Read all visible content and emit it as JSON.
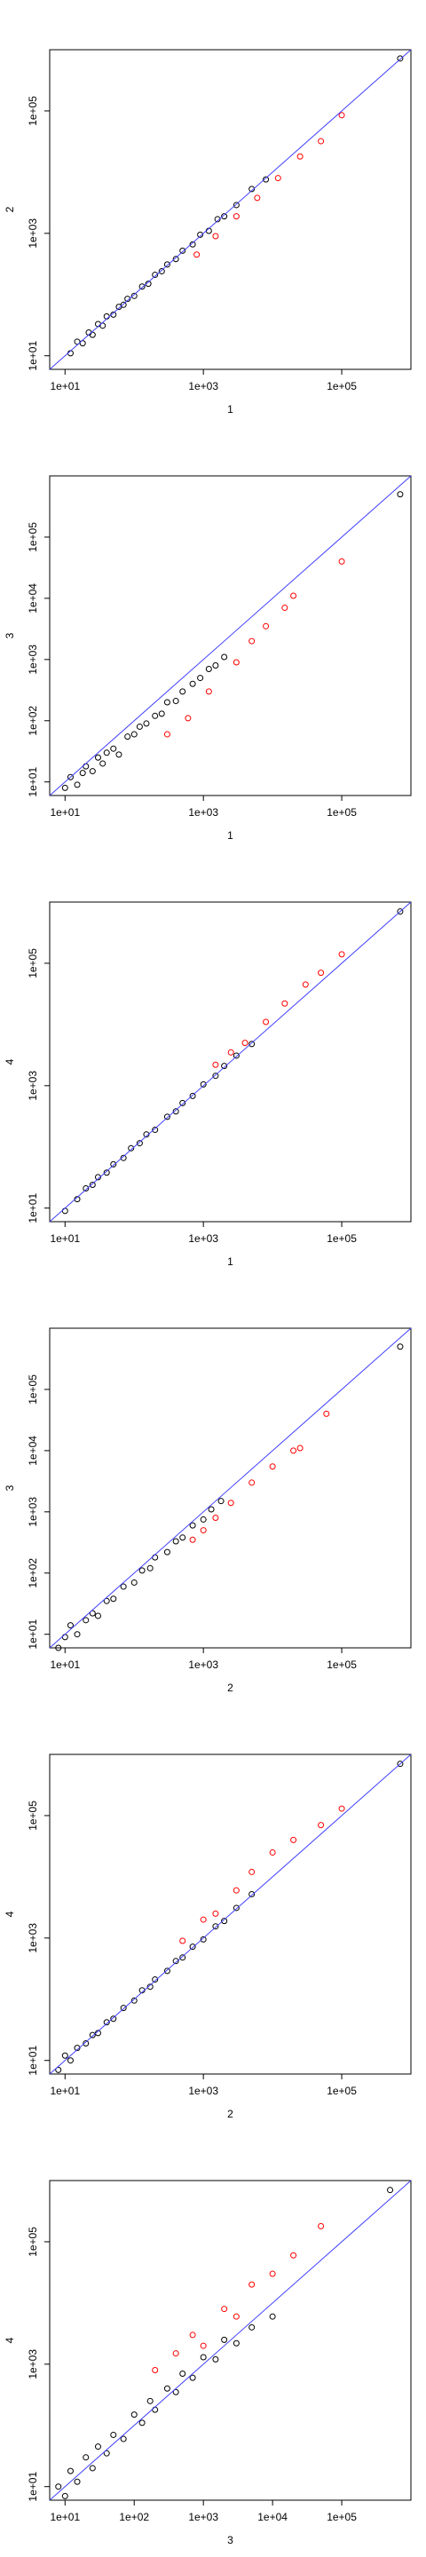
{
  "chart_data": [
    {
      "type": "scatter",
      "xlabel": "1",
      "ylabel": "2",
      "log_x": true,
      "log_y": true,
      "xlim": [
        6,
        1000000
      ],
      "ylim": [
        6,
        1000000
      ],
      "xticks": [
        {
          "value": 10,
          "label": "1e+01"
        },
        {
          "value": 1000,
          "label": "1e+03"
        },
        {
          "value": 100000,
          "label": "1e+05"
        }
      ],
      "yticks": [
        {
          "value": 10,
          "label": "1e+01"
        },
        {
          "value": 1000,
          "label": "1e+03"
        },
        {
          "value": 100000,
          "label": "1e+05"
        }
      ],
      "series": [
        {
          "color": "#000000",
          "x": [
            12,
            15,
            18,
            22,
            25,
            30,
            35,
            40,
            50,
            60,
            70,
            80,
            100,
            130,
            160,
            200,
            250,
            300,
            400,
            500,
            700,
            900,
            1200,
            1600,
            2000,
            3000,
            5000,
            8000,
            700000
          ],
          "y": [
            11,
            17,
            16,
            24,
            22,
            33,
            31,
            44,
            47,
            63,
            68,
            85,
            95,
            135,
            150,
            210,
            240,
            310,
            380,
            520,
            660,
            950,
            1100,
            1700,
            1900,
            2900,
            5300,
            7600,
            720000
          ]
        },
        {
          "color": "#ff0000",
          "x": [
            800,
            1500,
            3000,
            6000,
            12000,
            25000,
            50000,
            100000
          ],
          "y": [
            450,
            900,
            1900,
            3800,
            8000,
            18000,
            32000,
            85000
          ]
        }
      ]
    },
    {
      "type": "scatter",
      "xlabel": "1",
      "ylabel": "3",
      "log_x": true,
      "log_y": true,
      "xlim": [
        6,
        1000000
      ],
      "ylim": [
        6,
        1000000
      ],
      "xticks": [
        {
          "value": 10,
          "label": "1e+01"
        },
        {
          "value": 1000,
          "label": "1e+03"
        },
        {
          "value": 100000,
          "label": "1e+05"
        }
      ],
      "yticks": [
        {
          "value": 10,
          "label": "1e+01"
        },
        {
          "value": 100,
          "label": "1e+02"
        },
        {
          "value": 1000,
          "label": "1e+03"
        },
        {
          "value": 10000,
          "label": "1e+04"
        },
        {
          "value": 100000,
          "label": "1e+05"
        }
      ],
      "series": [
        {
          "color": "#000000",
          "x": [
            10,
            12,
            15,
            18,
            20,
            25,
            30,
            35,
            40,
            50,
            60,
            80,
            100,
            120,
            150,
            200,
            250,
            300,
            400,
            500,
            700,
            900,
            1200,
            1500,
            2000,
            700000
          ],
          "y": [
            8,
            12,
            9,
            14,
            18,
            15,
            25,
            20,
            30,
            35,
            28,
            55,
            60,
            80,
            90,
            120,
            130,
            200,
            210,
            300,
            400,
            500,
            700,
            800,
            1100,
            500000
          ]
        },
        {
          "color": "#ff0000",
          "x": [
            300,
            600,
            1200,
            3000,
            5000,
            8000,
            15000,
            20000,
            100000
          ],
          "y": [
            60,
            110,
            300,
            900,
            2000,
            3500,
            7000,
            11000,
            40000
          ]
        }
      ]
    },
    {
      "type": "scatter",
      "xlabel": "1",
      "ylabel": "4",
      "log_x": true,
      "log_y": true,
      "xlim": [
        6,
        1000000
      ],
      "ylim": [
        6,
        1000000
      ],
      "xticks": [
        {
          "value": 10,
          "label": "1e+01"
        },
        {
          "value": 1000,
          "label": "1e+03"
        },
        {
          "value": 100000,
          "label": "1e+05"
        }
      ],
      "yticks": [
        {
          "value": 10,
          "label": "1e+01"
        },
        {
          "value": 1000,
          "label": "1e+03"
        },
        {
          "value": 100000,
          "label": "1e+05"
        }
      ],
      "series": [
        {
          "color": "#000000",
          "x": [
            10,
            15,
            20,
            25,
            30,
            40,
            50,
            70,
            90,
            120,
            150,
            200,
            300,
            400,
            500,
            700,
            1000,
            1500,
            2000,
            3000,
            5000,
            700000
          ],
          "y": [
            9,
            14,
            21,
            24,
            32,
            38,
            52,
            66,
            95,
            115,
            160,
            190,
            310,
            380,
            520,
            680,
            1050,
            1450,
            2100,
            3100,
            4800,
            700000
          ]
        },
        {
          "color": "#ff0000",
          "x": [
            1500,
            2500,
            4000,
            8000,
            15000,
            30000,
            50000,
            100000
          ],
          "y": [
            2200,
            3500,
            5000,
            11000,
            22000,
            45000,
            70000,
            140000
          ]
        }
      ]
    },
    {
      "type": "scatter",
      "xlabel": "2",
      "ylabel": "3",
      "log_x": true,
      "log_y": true,
      "xlim": [
        6,
        1000000
      ],
      "ylim": [
        6,
        1000000
      ],
      "xticks": [
        {
          "value": 10,
          "label": "1e+01"
        },
        {
          "value": 1000,
          "label": "1e+03"
        },
        {
          "value": 100000,
          "label": "1e+05"
        }
      ],
      "yticks": [
        {
          "value": 10,
          "label": "1e+01"
        },
        {
          "value": 100,
          "label": "1e+02"
        },
        {
          "value": 1000,
          "label": "1e+03"
        },
        {
          "value": 10000,
          "label": "1e+04"
        },
        {
          "value": 100000,
          "label": "1e+05"
        }
      ],
      "series": [
        {
          "color": "#000000",
          "x": [
            8,
            10,
            12,
            15,
            20,
            25,
            30,
            40,
            50,
            70,
            100,
            130,
            170,
            200,
            300,
            400,
            500,
            700,
            1000,
            1300,
            1800,
            700000
          ],
          "y": [
            6,
            9,
            14,
            10,
            17,
            22,
            20,
            35,
            38,
            60,
            70,
            110,
            120,
            180,
            220,
            330,
            380,
            600,
            750,
            1100,
            1500,
            500000
          ]
        },
        {
          "color": "#ff0000",
          "x": [
            700,
            1000,
            1500,
            2500,
            5000,
            10000,
            20000,
            25000,
            60000
          ],
          "y": [
            350,
            500,
            800,
            1400,
            3000,
            5500,
            10000,
            11000,
            40000
          ]
        }
      ]
    },
    {
      "type": "scatter",
      "xlabel": "2",
      "ylabel": "4",
      "log_x": true,
      "log_y": true,
      "xlim": [
        6,
        1000000
      ],
      "ylim": [
        6,
        1000000
      ],
      "xticks": [
        {
          "value": 10,
          "label": "1e+01"
        },
        {
          "value": 1000,
          "label": "1e+03"
        },
        {
          "value": 100000,
          "label": "1e+05"
        }
      ],
      "yticks": [
        {
          "value": 10,
          "label": "1e+01"
        },
        {
          "value": 1000,
          "label": "1e+03"
        },
        {
          "value": 100000,
          "label": "1e+05"
        }
      ],
      "series": [
        {
          "color": "#000000",
          "x": [
            8,
            10,
            12,
            15,
            20,
            25,
            30,
            40,
            50,
            70,
            100,
            130,
            170,
            200,
            300,
            400,
            500,
            700,
            1000,
            1500,
            2000,
            3000,
            5000,
            700000
          ],
          "y": [
            7,
            12,
            10,
            16,
            19,
            26,
            28,
            42,
            48,
            72,
            95,
            140,
            160,
            210,
            290,
            420,
            480,
            720,
            950,
            1550,
            1900,
            3100,
            5200,
            700000
          ]
        },
        {
          "color": "#ff0000",
          "x": [
            500,
            1000,
            1500,
            3000,
            5000,
            10000,
            20000,
            50000,
            100000
          ],
          "y": [
            900,
            2000,
            2500,
            6000,
            12000,
            25000,
            40000,
            70000,
            130000
          ]
        }
      ]
    },
    {
      "type": "scatter",
      "xlabel": "3",
      "ylabel": "4",
      "log_x": true,
      "log_y": true,
      "xlim": [
        6,
        1000000
      ],
      "ylim": [
        6,
        1000000
      ],
      "xticks": [
        {
          "value": 10,
          "label": "1e+01"
        },
        {
          "value": 100,
          "label": "1e+02"
        },
        {
          "value": 1000,
          "label": "1e+03"
        },
        {
          "value": 10000,
          "label": "1e+04"
        },
        {
          "value": 100000,
          "label": "1e+05"
        }
      ],
      "yticks": [
        {
          "value": 10,
          "label": "1e+01"
        },
        {
          "value": 1000,
          "label": "1e+03"
        },
        {
          "value": 100000,
          "label": "1e+05"
        }
      ],
      "series": [
        {
          "color": "#000000",
          "x": [
            8,
            10,
            12,
            15,
            20,
            25,
            30,
            40,
            50,
            70,
            100,
            130,
            170,
            200,
            300,
            400,
            500,
            700,
            1000,
            1500,
            2000,
            3000,
            5000,
            10000,
            500000
          ],
          "y": [
            10,
            7,
            18,
            12,
            30,
            20,
            45,
            35,
            70,
            60,
            150,
            110,
            250,
            180,
            400,
            350,
            700,
            600,
            1300,
            1200,
            2500,
            2200,
            4000,
            6000,
            700000
          ]
        },
        {
          "color": "#ff0000",
          "x": [
            200,
            400,
            700,
            1000,
            2000,
            3000,
            5000,
            10000,
            20000,
            50000
          ],
          "y": [
            800,
            1500,
            3000,
            2000,
            8000,
            6000,
            20000,
            30000,
            60000,
            180000
          ]
        }
      ]
    }
  ]
}
